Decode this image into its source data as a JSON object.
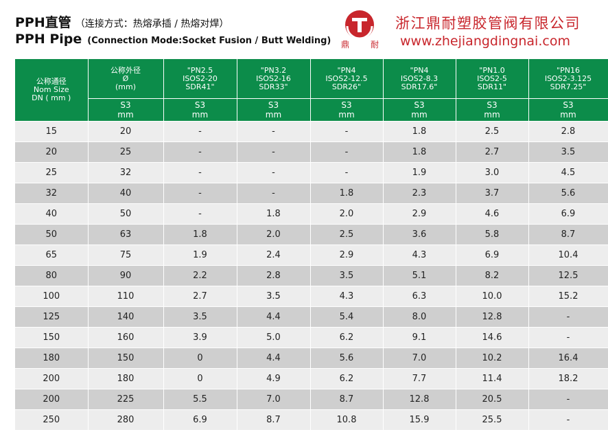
{
  "header": {
    "title_cn": "PPH直管",
    "subtitle_cn": "（连接方式：热熔承插 / 热熔对焊）",
    "title_en": "PPH Pipe",
    "subtitle_en": "(Connection Mode:Socket Fusion / Butt Welding)"
  },
  "brand": {
    "logo_char_left": "鼎",
    "logo_char_right": "耐",
    "company_name": "浙江鼎耐塑胶管阀有限公司",
    "website": "www.zhejiangdingnai.com",
    "accent_color": "#c8262c",
    "table_header_color": "#0c8c4a"
  },
  "table": {
    "col_dn": [
      "公称通径",
      "Nom Size",
      "DN ( mm )"
    ],
    "col_od": [
      "公称外径",
      "Ø",
      "(mm)"
    ],
    "pressure_cols": [
      {
        "lines": [
          "\"PN2.5",
          "ISOS2-20",
          "SDR41\""
        ],
        "sub": [
          "S3",
          "mm"
        ]
      },
      {
        "lines": [
          "\"PN3.2",
          "ISOS2-16",
          "SDR33\""
        ],
        "sub": [
          "S3",
          "mm"
        ]
      },
      {
        "lines": [
          "\"PN4",
          "ISOS2-12.5",
          "SDR26\""
        ],
        "sub": [
          "S3",
          "mm"
        ]
      },
      {
        "lines": [
          "\"PN4",
          "ISOS2-8.3",
          "SDR17.6\""
        ],
        "sub": [
          "S3",
          "mm"
        ]
      },
      {
        "lines": [
          "\"PN1.0",
          "ISOS2-5",
          "SDR11\""
        ],
        "sub": [
          "S3",
          "mm"
        ]
      },
      {
        "lines": [
          "\"PN16",
          "ISOS2-3.125",
          "SDR7.25\""
        ],
        "sub": [
          "S3",
          "mm"
        ]
      }
    ],
    "rows": [
      [
        "15",
        "20",
        "-",
        "-",
        "-",
        "1.8",
        "2.5",
        "2.8"
      ],
      [
        "20",
        "25",
        "-",
        "-",
        "-",
        "1.8",
        "2.7",
        "3.5"
      ],
      [
        "25",
        "32",
        "-",
        "-",
        "-",
        "1.9",
        "3.0",
        "4.5"
      ],
      [
        "32",
        "40",
        "-",
        "-",
        "1.8",
        "2.3",
        "3.7",
        "5.6"
      ],
      [
        "40",
        "50",
        "-",
        "1.8",
        "2.0",
        "2.9",
        "4.6",
        "6.9"
      ],
      [
        "50",
        "63",
        "1.8",
        "2.0",
        "2.5",
        "3.6",
        "5.8",
        "8.7"
      ],
      [
        "65",
        "75",
        "1.9",
        "2.4",
        "2.9",
        "4.3",
        "6.9",
        "10.4"
      ],
      [
        "80",
        "90",
        "2.2",
        "2.8",
        "3.5",
        "5.1",
        "8.2",
        "12.5"
      ],
      [
        "100",
        "110",
        "2.7",
        "3.5",
        "4.3",
        "6.3",
        "10.0",
        "15.2"
      ],
      [
        "125",
        "140",
        "3.5",
        "4.4",
        "5.4",
        "8.0",
        "12.8",
        "-"
      ],
      [
        "150",
        "160",
        "3.9",
        "5.0",
        "6.2",
        "9.1",
        "14.6",
        "-"
      ],
      [
        "180",
        "150",
        "0",
        "4.4",
        "5.6",
        "7.0",
        "10.2",
        "16.4"
      ],
      [
        "200",
        "180",
        "0",
        "4.9",
        "6.2",
        "7.7",
        "11.4",
        "18.2"
      ],
      [
        "200",
        "225",
        "5.5",
        "7.0",
        "8.7",
        "12.8",
        "20.5",
        "-"
      ],
      [
        "250",
        "280",
        "6.9",
        "8.7",
        "10.8",
        "15.9",
        "25.5",
        "-"
      ]
    ]
  }
}
